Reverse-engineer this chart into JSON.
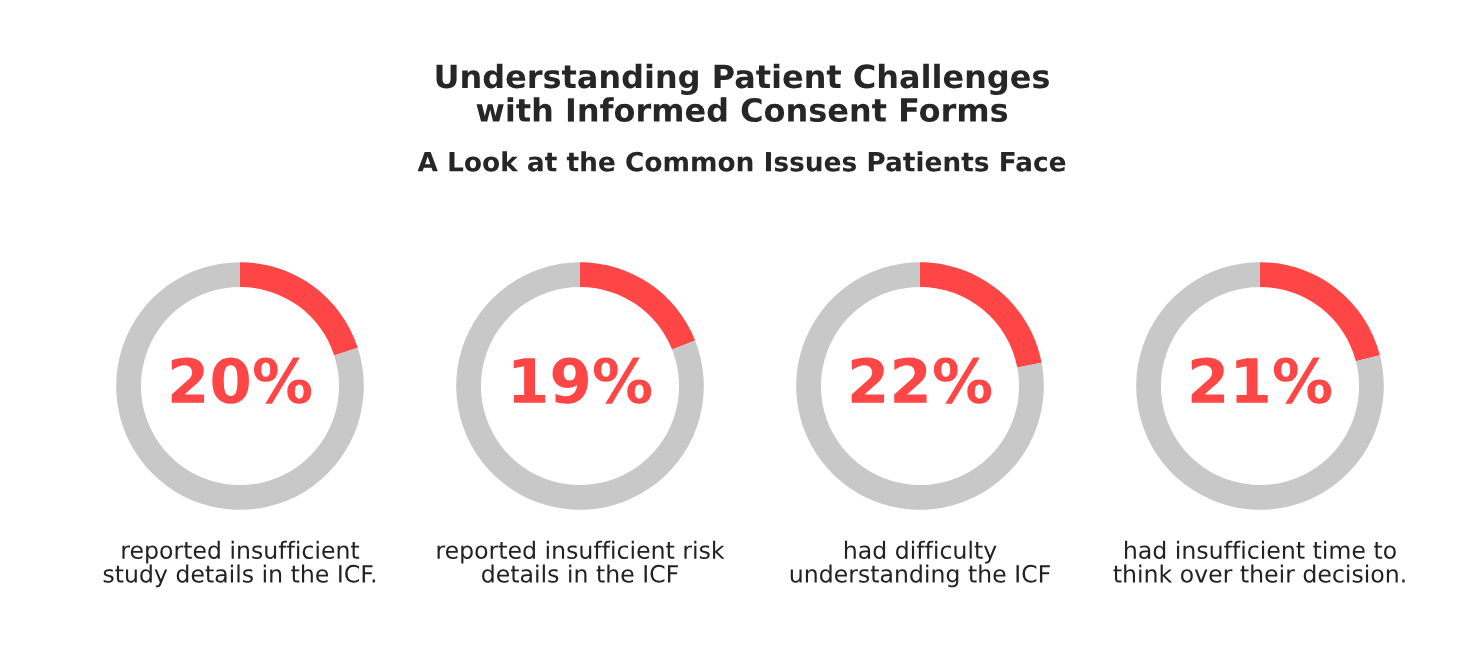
{
  "chart_data": [
    {
      "type": "donut",
      "title": "Understanding Patient Challenges\nwith Informed Consent Forms",
      "subtitle": "A Look at the Common Issues Patients Face",
      "categories": [
        null,
        null
      ],
      "values": [
        20,
        80
      ],
      "colors": [
        "#ff4646",
        "#c8c8c8"
      ],
      "value_labels": [
        "20%",
        null
      ],
      "annotations": [
        "reported insufficient\nstudy details in the ICF."
      ]
    },
    {
      "type": "donut",
      "categories": [
        null,
        null
      ],
      "values": [
        19,
        81
      ],
      "colors": [
        "#ff4646",
        "#c8c8c8"
      ],
      "value_labels": [
        "19%",
        null
      ],
      "annotations": [
        "reported insufficient risk\ndetails in the ICF"
      ]
    },
    {
      "type": "donut",
      "categories": [
        null,
        null
      ],
      "values": [
        22,
        78
      ],
      "colors": [
        "#ff4646",
        "#c8c8c8"
      ],
      "value_labels": [
        "22%",
        null
      ],
      "annotations": [
        "had difficulty\nunderstanding the ICF"
      ]
    },
    {
      "type": "donut",
      "categories": [
        null,
        null
      ],
      "values": [
        21,
        79
      ],
      "colors": [
        "#ff4646",
        "#c8c8c8"
      ],
      "value_labels": [
        "21%",
        null
      ],
      "annotations": [
        "had insufficient time to\nthink over their decision."
      ]
    }
  ]
}
